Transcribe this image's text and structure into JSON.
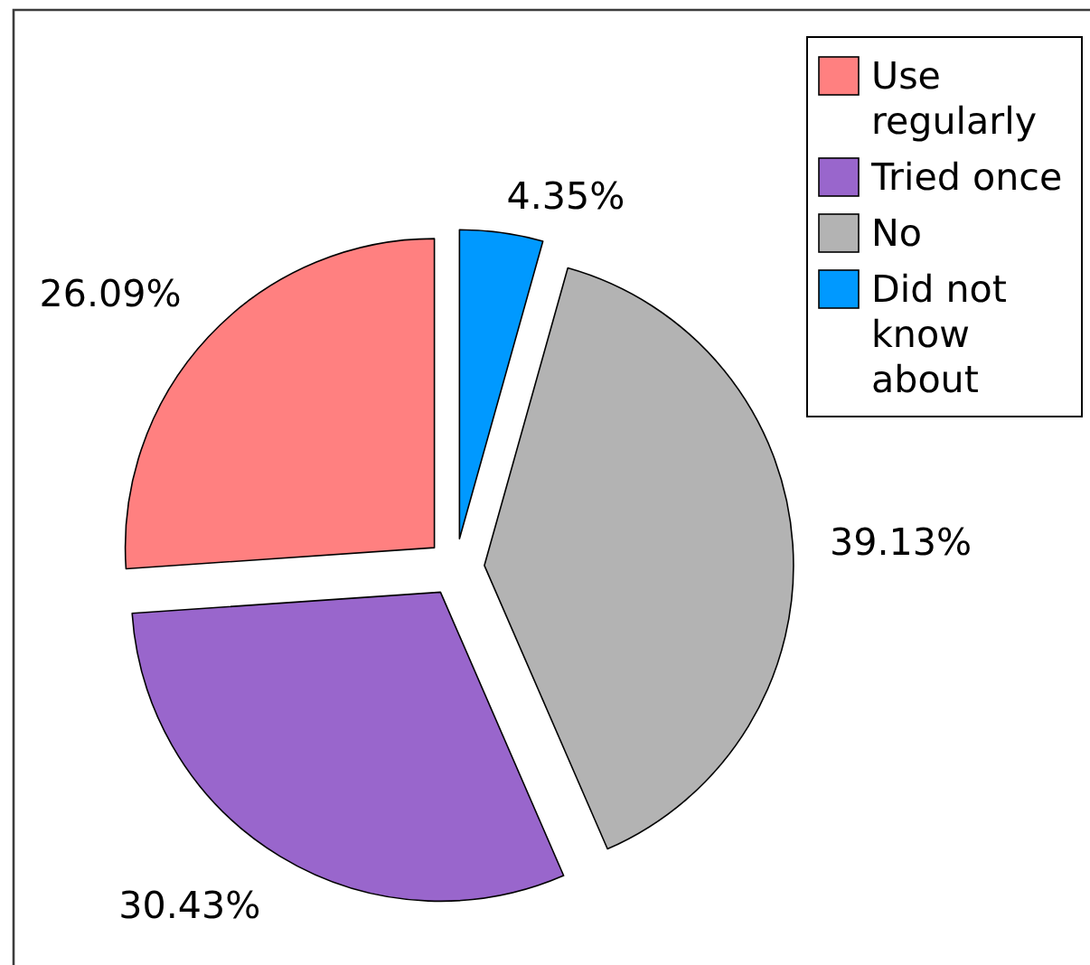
{
  "chart_data": {
    "type": "pie",
    "categories": [
      "Use regularly",
      "Tried once",
      "No",
      "Did not know about"
    ],
    "values": [
      26.09,
      30.43,
      39.13,
      4.35
    ],
    "colors": [
      "#ff8080",
      "#9966cc",
      "#b3b3b3",
      "#0099ff"
    ],
    "value_labels": [
      "26.09%",
      "30.43%",
      "39.13%",
      "4.35%"
    ],
    "legend": "top right"
  }
}
